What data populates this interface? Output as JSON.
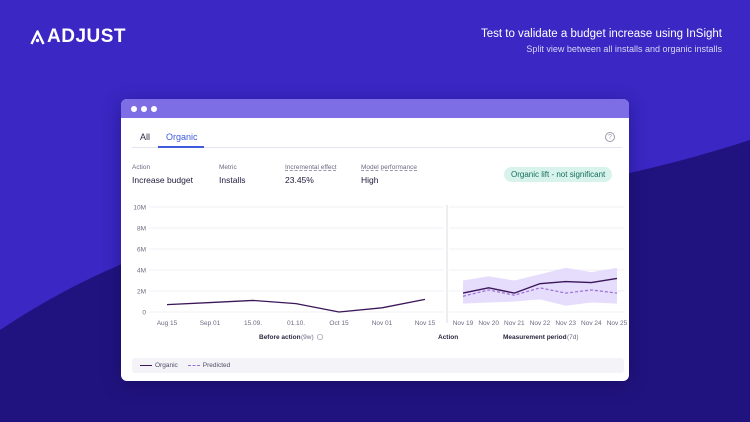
{
  "brand": {
    "name": "ADJUST"
  },
  "headline": {
    "title": "Test to validate a budget increase using InSight",
    "subtitle": "Split view between all installs and organic installs"
  },
  "colors": {
    "background": "#3a27c4",
    "background_dark": "#21137f",
    "titlebar": "#7d6ee6",
    "accent": "#3d5bdc",
    "organic_line": "#3b1659",
    "predicted_line": "#9b6fd4",
    "confidence_band": "#e2d6fb",
    "badge_bg": "#d7f3ec",
    "badge_text": "#156e5a"
  },
  "tabs": [
    {
      "label": "All",
      "active": false
    },
    {
      "label": "Organic",
      "active": true
    }
  ],
  "help": {
    "glyph": "?"
  },
  "metrics": {
    "action": {
      "label": "Action",
      "value": "Increase budget"
    },
    "metric": {
      "label": "Metric",
      "value": "Installs"
    },
    "effect": {
      "label": "Incremental effect",
      "value": "23.45%"
    },
    "performance": {
      "label": "Model performance",
      "value": "High"
    }
  },
  "badge": {
    "label": "Organic lift - not significant"
  },
  "legend": {
    "organic": "Organic",
    "predicted": "Predicted"
  },
  "chart_data": {
    "type": "line",
    "ylim": [
      0,
      10
    ],
    "yticks": [
      0,
      2,
      4,
      6,
      8,
      10
    ],
    "ytick_labels": [
      "0",
      "2M",
      "4M",
      "6M",
      "8M",
      "10M"
    ],
    "grid": true,
    "before": {
      "xlabel": "Before action",
      "xlabel_note": "(9w)",
      "x": [
        "Aug 15",
        "Sep 01",
        "15.09.",
        "01.10.",
        "Oct 15",
        "Nov 01",
        "Nov 15"
      ],
      "series": [
        {
          "name": "Organic",
          "values": [
            0.7,
            0.9,
            1.1,
            0.8,
            0.0,
            0.4,
            1.2
          ]
        }
      ]
    },
    "action_label": "Action",
    "after": {
      "xlabel": "Measurement period",
      "xlabel_note": "(7d)",
      "x": [
        "Nov 19",
        "Nov 20",
        "Nov 21",
        "Nov 22",
        "Nov 23",
        "Nov 24",
        "Nov 25"
      ],
      "series": [
        {
          "name": "Organic",
          "values": [
            1.8,
            2.3,
            1.8,
            2.7,
            2.9,
            2.8,
            3.2
          ]
        },
        {
          "name": "Predicted",
          "values": [
            1.5,
            2.1,
            1.6,
            2.3,
            1.8,
            2.1,
            1.8
          ]
        }
      ],
      "band_low": [
        0.8,
        0.9,
        1.0,
        1.2,
        0.6,
        0.9,
        0.8
      ],
      "band_high": [
        3.0,
        3.4,
        3.0,
        3.6,
        4.2,
        3.8,
        4.2
      ]
    }
  }
}
